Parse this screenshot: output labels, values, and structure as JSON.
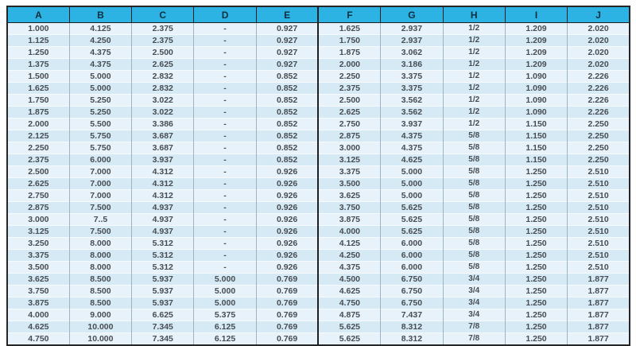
{
  "table": {
    "headers": [
      "A",
      "B",
      "C",
      "D",
      "E",
      "F",
      "G",
      "H",
      "I",
      "J"
    ],
    "rows": [
      [
        "1.000",
        "4.125",
        "2.375",
        "-",
        "0.927",
        "1.625",
        "2.937",
        "1/2",
        "1.209",
        "2.020"
      ],
      [
        "1.125",
        "4.250",
        "2.375",
        "-",
        "0.927",
        "1.750",
        "2.937",
        "1/2",
        "1.209",
        "2.020"
      ],
      [
        "1.250",
        "4.375",
        "2.500",
        "-",
        "0.927",
        "1.875",
        "3.062",
        "1/2",
        "1.209",
        "2.020"
      ],
      [
        "1.375",
        "4.375",
        "2.625",
        "-",
        "0.927",
        "2.000",
        "3.186",
        "1/2",
        "1.209",
        "2.020"
      ],
      [
        "1.500",
        "5.000",
        "2.832",
        "-",
        "0.852",
        "2.250",
        "3.375",
        "1/2",
        "1.090",
        "2.226"
      ],
      [
        "1.625",
        "5.000",
        "2.832",
        "-",
        "0.852",
        "2.375",
        "3.375",
        "1/2",
        "1.090",
        "2.226"
      ],
      [
        "1.750",
        "5.250",
        "3.022",
        "-",
        "0.852",
        "2.500",
        "3.562",
        "1/2",
        "1.090",
        "2.226"
      ],
      [
        "1.875",
        "5.250",
        "3.022",
        "-",
        "0.852",
        "2.625",
        "3.562",
        "1/2",
        "1.090",
        "2.226"
      ],
      [
        "2.000",
        "5.500",
        "3.386",
        "-",
        "0.852",
        "2.750",
        "3.937",
        "1/2",
        "1.150",
        "2.250"
      ],
      [
        "2.125",
        "5.750",
        "3.687",
        "-",
        "0.852",
        "2.875",
        "4.375",
        "5/8",
        "1.150",
        "2.250"
      ],
      [
        "2.250",
        "5.750",
        "3.687",
        "-",
        "0.852",
        "3.000",
        "4.375",
        "5/8",
        "1.150",
        "2.250"
      ],
      [
        "2.375",
        "6.000",
        "3.937",
        "-",
        "0.852",
        "3.125",
        "4.625",
        "5/8",
        "1.150",
        "2.250"
      ],
      [
        "2.500",
        "7.000",
        "4.312",
        "-",
        "0.926",
        "3.375",
        "5.000",
        "5/8",
        "1.250",
        "2.510"
      ],
      [
        "2.625",
        "7.000",
        "4.312",
        "-",
        "0.926",
        "3.500",
        "5.000",
        "5/8",
        "1.250",
        "2.510"
      ],
      [
        "2.750",
        "7.000",
        "4.312",
        "-",
        "0.926",
        "3.625",
        "5.000",
        "5/8",
        "1.250",
        "2.510"
      ],
      [
        "2.875",
        "7.500",
        "4.937",
        "-",
        "0.926",
        "3.750",
        "5.625",
        "5/8",
        "1.250",
        "2.510"
      ],
      [
        "3.000",
        "7..5",
        "4.937",
        "-",
        "0.926",
        "3.875",
        "5.625",
        "5/8",
        "1.250",
        "2.510"
      ],
      [
        "3.125",
        "7.500",
        "4.937",
        "-",
        "0.926",
        "4.000",
        "5.625",
        "5/8",
        "1.250",
        "2.510"
      ],
      [
        "3.250",
        "8.000",
        "5.312",
        "-",
        "0.926",
        "4.125",
        "6.000",
        "5/8",
        "1.250",
        "2.510"
      ],
      [
        "3.375",
        "8.000",
        "5.312",
        "-",
        "0.926",
        "4.250",
        "6.000",
        "5/8",
        "1.250",
        "2.510"
      ],
      [
        "3.500",
        "8.000",
        "5.312",
        "-",
        "0.926",
        "4.375",
        "6.000",
        "5/8",
        "1.250",
        "2.510"
      ],
      [
        "3.625",
        "8.500",
        "5.937",
        "5.000",
        "0.769",
        "4.500",
        "6.750",
        "3/4",
        "1.250",
        "1.877"
      ],
      [
        "3.750",
        "8.500",
        "5.937",
        "5.000",
        "0.769",
        "4.625",
        "6.750",
        "3/4",
        "1.250",
        "1.877"
      ],
      [
        "3.875",
        "8.500",
        "5.937",
        "5.000",
        "0.769",
        "4.750",
        "6.750",
        "3/4",
        "1.250",
        "1.877"
      ],
      [
        "4.000",
        "9.000",
        "6.625",
        "5.375",
        "0.769",
        "4.875",
        "7.437",
        "3/4",
        "1.250",
        "1.877"
      ],
      [
        "4.625",
        "10.000",
        "7.345",
        "6.125",
        "0.769",
        "5.625",
        "8.312",
        "7/8",
        "1.250",
        "1.877"
      ],
      [
        "4.750",
        "10.000",
        "7.345",
        "6.125",
        "0.769",
        "5.625",
        "8.312",
        "7/8",
        "1.250",
        "1.877"
      ]
    ],
    "colors": {
      "header_bg": "#2cb3e3",
      "header_text": "#0d2f3f",
      "row_bg_light": "#e7f2fa",
      "row_bg_dark": "#d6eaf6",
      "body_text": "#474d52",
      "outer_border": "#262626",
      "column_separator": "#9cb4c4"
    }
  }
}
